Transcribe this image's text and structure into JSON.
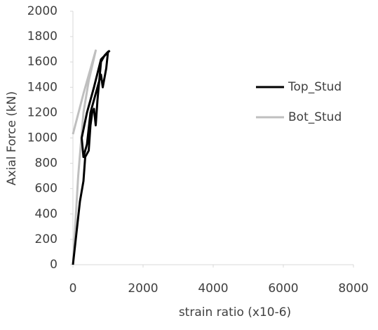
{
  "chart_data": {
    "type": "line",
    "x_label": "strain ratio (x10-6)",
    "y_label": "Axial Force (kN)",
    "xlim": [
      0,
      8000
    ],
    "xticks": [
      0,
      2000,
      4000,
      6000,
      8000
    ],
    "ylim": [
      0,
      2000
    ],
    "yticks": [
      0,
      200,
      400,
      600,
      800,
      1000,
      1200,
      1400,
      1600,
      1800,
      2000
    ],
    "legend": "right",
    "series": [
      {
        "name": "Top_Stud",
        "color": "#000000",
        "x": [
          0,
          200,
          300,
          350,
          450,
          500,
          550,
          600,
          650,
          700,
          750,
          800,
          900,
          1000,
          950,
          850,
          800,
          700,
          600,
          500,
          400,
          300,
          250,
          400,
          600,
          800,
          1050
        ],
        "values": [
          0,
          500,
          660,
          850,
          900,
          1100,
          1200,
          1230,
          1100,
          1300,
          1450,
          1600,
          1650,
          1680,
          1550,
          1400,
          1500,
          1400,
          1300,
          1200,
          950,
          850,
          1000,
          1200,
          1400,
          1620,
          1690
        ]
      },
      {
        "name": "Bot_Stud",
        "color": "#bfbfbf",
        "x": [
          0,
          150,
          300,
          450,
          650,
          300,
          0
        ],
        "values": [
          0,
          700,
          1200,
          1450,
          1690,
          1350,
          1030
        ]
      }
    ]
  }
}
